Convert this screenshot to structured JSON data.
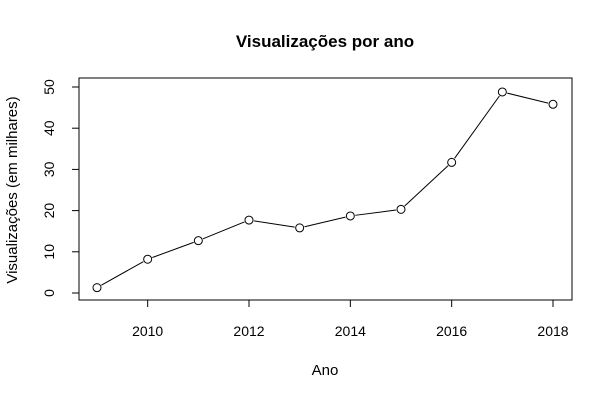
{
  "chart_data": {
    "type": "line",
    "title": "Visualizações por ano",
    "xlabel": "Ano",
    "ylabel": "Visualizações (em milhares)",
    "x": [
      2009,
      2010,
      2011,
      2012,
      2013,
      2014,
      2015,
      2016,
      2017,
      2018
    ],
    "values": [
      1.3,
      8.2,
      12.7,
      17.7,
      15.8,
      18.7,
      20.3,
      31.7,
      48.8,
      45.8
    ],
    "xlim": [
      2009,
      2018
    ],
    "ylim": [
      0,
      50
    ],
    "x_ticks": [
      2010,
      2012,
      2014,
      2016,
      2018
    ],
    "y_ticks": [
      0,
      10,
      20,
      30,
      40,
      50
    ],
    "marker": "open-circle",
    "grid": false,
    "colors": {
      "line": "#000000",
      "marker_fill": "#ffffff",
      "background": "#ffffff"
    }
  }
}
